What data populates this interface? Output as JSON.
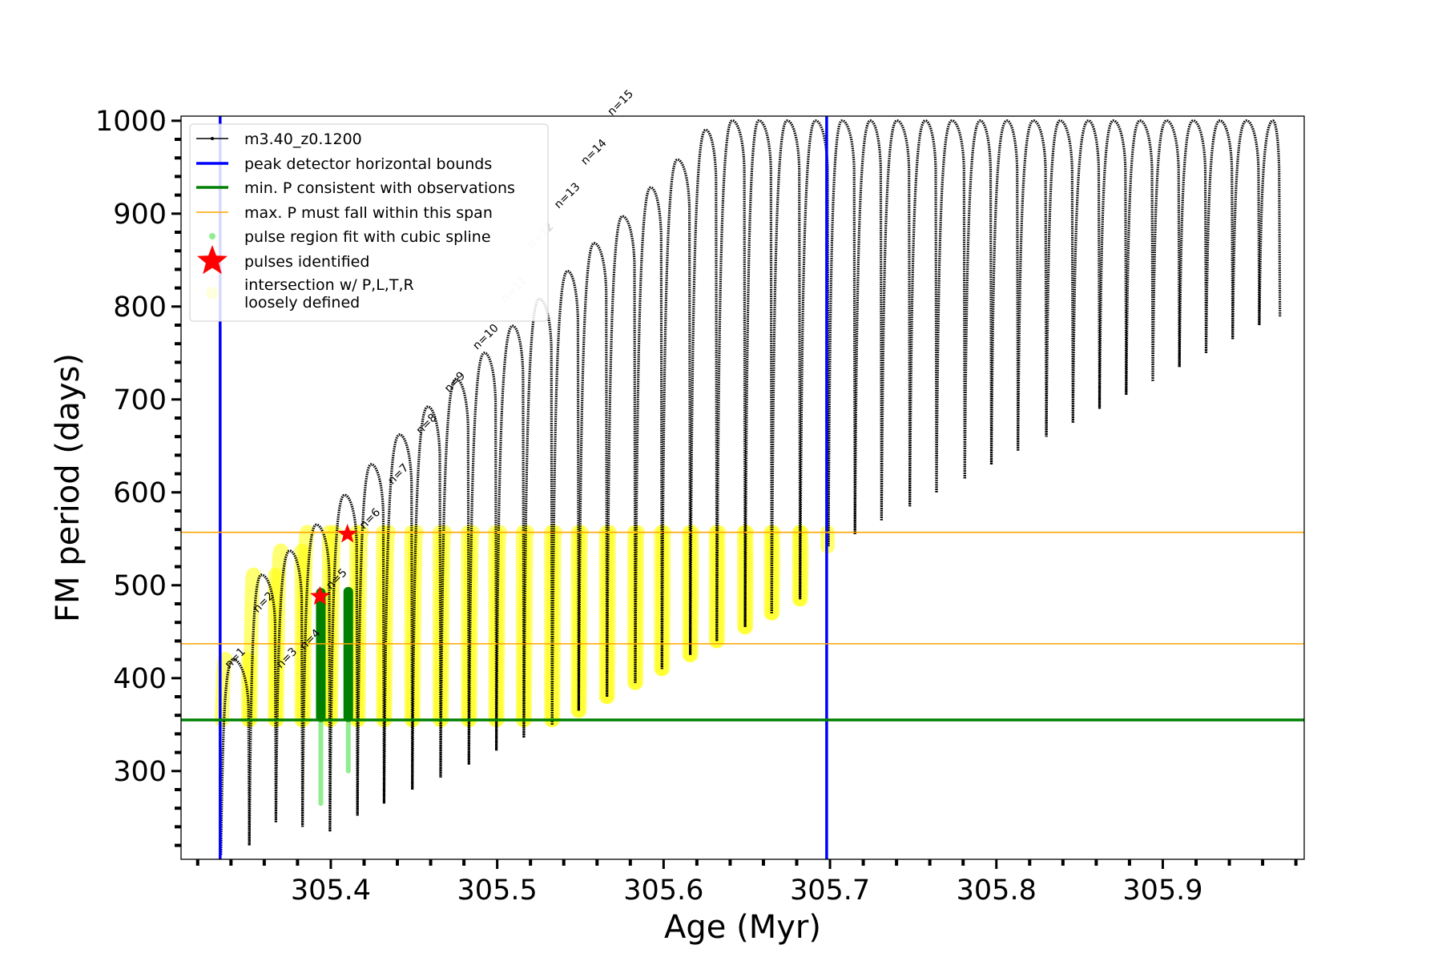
{
  "chart_data": {
    "type": "line",
    "xlabel": "Age (Myr)",
    "ylabel": "FM period (days)",
    "xlim": [
      305.31,
      305.985
    ],
    "ylim": [
      205,
      1005
    ],
    "xticks": [
      {
        "value": 305.4,
        "label": "305.4"
      },
      {
        "value": 305.5,
        "label": "305.5"
      },
      {
        "value": 305.6,
        "label": "305.6"
      },
      {
        "value": 305.7,
        "label": "305.7"
      },
      {
        "value": 305.8,
        "label": "305.8"
      },
      {
        "value": 305.9,
        "label": "305.9"
      }
    ],
    "yticks": [
      {
        "value": 300,
        "label": "300"
      },
      {
        "value": 400,
        "label": "400"
      },
      {
        "value": 500,
        "label": "500"
      },
      {
        "value": 600,
        "label": "600"
      },
      {
        "value": 700,
        "label": "700"
      },
      {
        "value": 800,
        "label": "800"
      },
      {
        "value": 900,
        "label": "900"
      },
      {
        "value": 1000,
        "label": "1000"
      }
    ],
    "grid": false,
    "legend_position": "top-left",
    "legend": [
      {
        "label": "m3.40_z0.1200",
        "marker": "line-dots",
        "color": "#000000"
      },
      {
        "label": "peak detector horizontal bounds",
        "marker": "line",
        "color": "#0000ff"
      },
      {
        "label": "min. P consistent with observations",
        "marker": "line",
        "color": "#008000"
      },
      {
        "label": "max. P must fall within this span",
        "marker": "thin-line",
        "color": "#ffa500"
      },
      {
        "label": "pulse region fit with cubic spline",
        "marker": "dot",
        "color": "#90ee90"
      },
      {
        "label": "pulses identified",
        "marker": "star",
        "color": "#ff0000"
      },
      {
        "label": "intersection w/ P,L,T,R\nloosely defined",
        "marker": "circle",
        "color": "#ffffe0"
      }
    ],
    "reference_lines": {
      "peak_detector_bounds_x": [
        305.3335,
        305.698
      ],
      "min_period_y": 355,
      "max_period_span_y": [
        437,
        557
      ]
    },
    "series": [
      {
        "name": "m3.40_z0.1200",
        "color": "#000000",
        "pulse_cycles": [
          {
            "n": 1,
            "trough_x": 305.334,
            "trough_y": 210,
            "peak_x": 305.341,
            "peak_y": 420
          },
          {
            "n": 2,
            "trough_x": 305.351,
            "trough_y": 220,
            "peak_x": 305.358,
            "peak_y": 511
          },
          {
            "n": 3,
            "trough_x": 305.367,
            "trough_y": 245,
            "peak_x": 305.375,
            "peak_y": 537
          },
          {
            "n": 4,
            "trough_x": 305.383,
            "trough_y": 240,
            "peak_x": 305.391,
            "peak_y": 565
          },
          {
            "n": 5,
            "trough_x": 305.3995,
            "trough_y": 235,
            "peak_x": 305.408,
            "peak_y": 597
          },
          {
            "n": 6,
            "trough_x": 305.416,
            "trough_y": 252,
            "peak_x": 305.424,
            "peak_y": 630
          },
          {
            "n": 7,
            "trough_x": 305.432,
            "trough_y": 265,
            "peak_x": 305.441,
            "peak_y": 662
          },
          {
            "n": 8,
            "trough_x": 305.449,
            "trough_y": 280,
            "peak_x": 305.458,
            "peak_y": 692
          },
          {
            "n": 9,
            "trough_x": 305.466,
            "trough_y": 293,
            "peak_x": 305.475,
            "peak_y": 722
          },
          {
            "n": 10,
            "trough_x": 305.483,
            "trough_y": 307,
            "peak_x": 305.492,
            "peak_y": 750
          },
          {
            "n": 11,
            "trough_x": 305.4995,
            "trough_y": 322,
            "peak_x": 305.509,
            "peak_y": 779
          },
          {
            "n": 12,
            "trough_x": 305.516,
            "trough_y": 336,
            "peak_x": 305.525,
            "peak_y": 808
          },
          {
            "n": 13,
            "trough_x": 305.533,
            "trough_y": 350,
            "peak_x": 305.542,
            "peak_y": 838
          },
          {
            "n": 14,
            "trough_x": 305.549,
            "trough_y": 365,
            "peak_x": 305.558,
            "peak_y": 868
          },
          {
            "n": 15,
            "trough_x": 305.566,
            "trough_y": 380,
            "peak_x": 305.575,
            "peak_y": 897
          },
          {
            "n": 16,
            "trough_x": 305.583,
            "trough_y": 395,
            "peak_x": 305.592,
            "peak_y": 928
          },
          {
            "n": 17,
            "trough_x": 305.599,
            "trough_y": 410,
            "peak_x": 305.608,
            "peak_y": 958
          },
          {
            "n": 18,
            "trough_x": 305.616,
            "trough_y": 425,
            "peak_x": 305.625,
            "peak_y": 990
          },
          {
            "n": 19,
            "trough_x": 305.632,
            "trough_y": 440,
            "peak_x": 305.641,
            "peak_y": 1000
          },
          {
            "n": 20,
            "trough_x": 305.649,
            "trough_y": 455,
            "peak_x": 305.657,
            "peak_y": 1000
          },
          {
            "n": 21,
            "trough_x": 305.665,
            "trough_y": 470,
            "peak_x": 305.674,
            "peak_y": 1000
          },
          {
            "n": 22,
            "trough_x": 305.682,
            "trough_y": 485,
            "peak_x": 305.691,
            "peak_y": 1000
          },
          {
            "n": 23,
            "trough_x": 305.699,
            "trough_y": 542,
            "peak_x": 305.707,
            "peak_y": 1000
          },
          {
            "n": 24,
            "trough_x": 305.715,
            "trough_y": 555,
            "peak_x": 305.724,
            "peak_y": 1000
          },
          {
            "n": 25,
            "trough_x": 305.731,
            "trough_y": 570,
            "peak_x": 305.74,
            "peak_y": 1000
          },
          {
            "n": 26,
            "trough_x": 305.748,
            "trough_y": 585,
            "peak_x": 305.757,
            "peak_y": 1000
          },
          {
            "n": 27,
            "trough_x": 305.764,
            "trough_y": 600,
            "peak_x": 305.773,
            "peak_y": 1000
          },
          {
            "n": 28,
            "trough_x": 305.781,
            "trough_y": 615,
            "peak_x": 305.79,
            "peak_y": 1000
          },
          {
            "n": 29,
            "trough_x": 305.797,
            "trough_y": 630,
            "peak_x": 305.806,
            "peak_y": 1000
          },
          {
            "n": 30,
            "trough_x": 305.813,
            "trough_y": 645,
            "peak_x": 305.822,
            "peak_y": 1000
          },
          {
            "n": 31,
            "trough_x": 305.83,
            "trough_y": 660,
            "peak_x": 305.838,
            "peak_y": 1000
          },
          {
            "n": 32,
            "trough_x": 305.846,
            "trough_y": 675,
            "peak_x": 305.855,
            "peak_y": 1000
          },
          {
            "n": 33,
            "trough_x": 305.862,
            "trough_y": 690,
            "peak_x": 305.87,
            "peak_y": 1000
          },
          {
            "n": 34,
            "trough_x": 305.878,
            "trough_y": 705,
            "peak_x": 305.886,
            "peak_y": 1000
          },
          {
            "n": 35,
            "trough_x": 305.894,
            "trough_y": 720,
            "peak_x": 305.902,
            "peak_y": 1000
          },
          {
            "n": 36,
            "trough_x": 305.91,
            "trough_y": 735,
            "peak_x": 305.918,
            "peak_y": 1000
          },
          {
            "n": 37,
            "trough_x": 305.926,
            "trough_y": 750,
            "peak_x": 305.934,
            "peak_y": 1000
          },
          {
            "n": 38,
            "trough_x": 305.942,
            "trough_y": 765,
            "peak_x": 305.95,
            "peak_y": 1000
          },
          {
            "n": 39,
            "trough_x": 305.958,
            "trough_y": 780,
            "peak_x": 305.966,
            "peak_y": 1000
          }
        ]
      },
      {
        "name": "intersection w/ P,L,T,R\nloosely defined",
        "color": "#ffff00",
        "y_range": [
          355,
          557
        ]
      }
    ],
    "pulse_labels": [
      {
        "text": "n=1",
        "x": 305.339,
        "y": 410,
        "color": "#000000"
      },
      {
        "text": "n=2",
        "x": 305.356,
        "y": 470,
        "color": "#000000"
      },
      {
        "text": "n=3",
        "x": 305.37,
        "y": 410,
        "color": "#000000"
      },
      {
        "text": "n=4",
        "x": 305.384,
        "y": 430,
        "color": "#000000"
      },
      {
        "text": "n=5",
        "x": 305.4,
        "y": 495,
        "color": "#000000"
      },
      {
        "text": "n=6",
        "x": 305.42,
        "y": 560,
        "color": "#000000"
      },
      {
        "text": "n=7",
        "x": 305.437,
        "y": 608,
        "color": "#000000"
      },
      {
        "text": "n=8",
        "x": 305.454,
        "y": 662,
        "color": "#000000"
      },
      {
        "text": "n=9",
        "x": 305.471,
        "y": 707,
        "color": "#000000"
      },
      {
        "text": "n=10",
        "x": 305.488,
        "y": 753,
        "color": "#000000"
      },
      {
        "text": "n=11",
        "x": 305.505,
        "y": 804,
        "color": "#cccccc"
      },
      {
        "text": "n=12",
        "x": 305.521,
        "y": 862,
        "color": "#cccccc"
      },
      {
        "text": "n=13",
        "x": 305.537,
        "y": 905,
        "color": "#000000"
      },
      {
        "text": "n=14",
        "x": 305.553,
        "y": 952,
        "color": "#000000"
      },
      {
        "text": "n=15",
        "x": 305.569,
        "y": 1005,
        "color": "#000000"
      }
    ],
    "pulses_identified": [
      {
        "x": 305.3935,
        "y": 488
      },
      {
        "x": 305.41,
        "y": 555
      }
    ],
    "spline_fits": [
      {
        "x": 305.394,
        "y_range": [
          265,
          492
        ]
      },
      {
        "x": 305.4105,
        "y_range": [
          300,
          493
        ]
      }
    ]
  }
}
